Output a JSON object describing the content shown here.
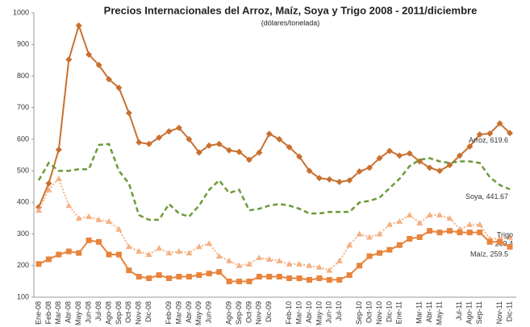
{
  "chart_data": {
    "type": "line",
    "title": "Precios Internacionales del Arroz, Maíz, Soya y Trigo 2008 - 2011/diciembre",
    "subtitle": "(dólares/tonelada)",
    "categories": [
      "Ene-08",
      "Feb-08",
      "Mar-08",
      "Abr-08",
      "May-08",
      "Jun-08",
      "Jul-08",
      "Ago-08",
      "Sep-08",
      "Oct-08",
      "Nov-08",
      "Dic-08",
      null,
      "Feb-09",
      "Mar-09",
      "Abr-09",
      "May-09",
      "Jun-09",
      null,
      "Ago-09",
      "Sep-09",
      "Oct-09",
      "Nov-09",
      "Dic-09",
      null,
      "Feb-10",
      "Mar-10",
      "Abr-10",
      "May-10",
      "Jun-10",
      "Jul-10",
      null,
      "Sep-10",
      "Oct-10",
      "Nov-10",
      "Dic-10",
      "Ene-11",
      null,
      "Mar-11",
      "Abr-11",
      "May-11",
      null,
      "Jul-11",
      "Ago-11",
      "Sep-11",
      null,
      "Nov-11",
      "Dic-11"
    ],
    "ylim": [
      100,
      1000
    ],
    "yticks": [
      100,
      200,
      300,
      400,
      500,
      600,
      700,
      800,
      900,
      1000
    ],
    "series": [
      {
        "name": "Arroz",
        "color": "#c9702f",
        "marker": "diamond",
        "dash": "solid",
        "values": [
          385,
          460,
          567,
          852,
          960,
          868,
          835,
          790,
          763,
          683,
          590,
          585,
          605,
          625,
          636,
          600,
          558,
          580,
          585,
          565,
          560,
          535,
          558,
          617,
          600,
          575,
          545,
          500,
          477,
          473,
          465,
          470,
          498,
          510,
          540,
          563,
          548,
          555,
          530,
          510,
          500,
          518,
          548,
          577,
          615,
          618,
          650,
          619.6
        ],
        "value_labels": [
          null,
          null,
          null,
          null,
          null,
          null,
          null,
          null,
          null,
          null,
          null,
          null,
          null,
          null,
          null,
          null,
          null,
          null,
          null,
          null,
          null,
          null,
          null,
          null,
          null,
          null,
          null,
          null,
          null,
          null,
          null,
          null,
          null,
          null,
          null,
          null,
          null,
          null,
          null,
          null,
          null,
          null,
          null,
          null,
          null,
          null,
          null,
          "Arroz, 619.6"
        ]
      },
      {
        "name": "Soya",
        "color": "#6b9a3a",
        "marker": "none",
        "dash": "dashed",
        "values": [
          470,
          525,
          500,
          500,
          505,
          505,
          582,
          585,
          500,
          460,
          360,
          345,
          345,
          395,
          365,
          355,
          390,
          440,
          470,
          430,
          440,
          375,
          380,
          390,
          395,
          390,
          380,
          365,
          365,
          370,
          370,
          370,
          400,
          405,
          415,
          445,
          475,
          515,
          535,
          540,
          530,
          525,
          530,
          530,
          525,
          480,
          455,
          441.67
        ],
        "value_labels": [
          null,
          null,
          null,
          null,
          null,
          null,
          null,
          null,
          null,
          null,
          null,
          null,
          null,
          null,
          null,
          null,
          null,
          null,
          null,
          null,
          null,
          null,
          null,
          null,
          null,
          null,
          null,
          null,
          null,
          null,
          null,
          null,
          null,
          null,
          null,
          null,
          null,
          null,
          null,
          null,
          null,
          null,
          null,
          null,
          null,
          null,
          null,
          "Soya, 441.67"
        ]
      },
      {
        "name": "Trigo",
        "color": "#f4b183",
        "marker": "triangle",
        "dash": "dotted",
        "values": [
          375,
          440,
          475,
          390,
          350,
          355,
          345,
          340,
          315,
          260,
          245,
          235,
          255,
          240,
          245,
          240,
          260,
          270,
          230,
          215,
          200,
          205,
          225,
          220,
          215,
          205,
          205,
          200,
          195,
          185,
          215,
          265,
          300,
          290,
          300,
          330,
          340,
          360,
          335,
          360,
          360,
          350,
          315,
          330,
          330,
          285,
          285,
          289.4
        ],
        "value_labels": [
          null,
          null,
          null,
          null,
          null,
          null,
          null,
          null,
          null,
          null,
          null,
          null,
          null,
          null,
          null,
          null,
          null,
          null,
          null,
          null,
          null,
          null,
          null,
          null,
          null,
          null,
          null,
          null,
          null,
          null,
          null,
          null,
          null,
          null,
          null,
          null,
          null,
          null,
          null,
          null,
          null,
          null,
          null,
          null,
          null,
          null,
          null,
          "Trigo\n289.4"
        ]
      },
      {
        "name": "Maíz",
        "color": "#e8843c",
        "marker": "square",
        "dash": "solid",
        "values": [
          205,
          220,
          235,
          245,
          240,
          280,
          275,
          235,
          235,
          185,
          165,
          160,
          170,
          160,
          165,
          165,
          170,
          175,
          180,
          150,
          150,
          150,
          165,
          165,
          165,
          160,
          160,
          155,
          160,
          155,
          155,
          170,
          200,
          230,
          240,
          250,
          265,
          285,
          290,
          310,
          305,
          310,
          305,
          305,
          305,
          275,
          275,
          259.5
        ],
        "value_labels": [
          null,
          null,
          null,
          null,
          null,
          null,
          null,
          null,
          null,
          null,
          null,
          null,
          null,
          null,
          null,
          null,
          null,
          null,
          null,
          null,
          null,
          null,
          null,
          null,
          null,
          null,
          null,
          null,
          null,
          null,
          null,
          null,
          null,
          null,
          null,
          null,
          null,
          null,
          null,
          null,
          null,
          null,
          null,
          null,
          null,
          null,
          null,
          "Maíz, 259.5"
        ]
      }
    ]
  }
}
